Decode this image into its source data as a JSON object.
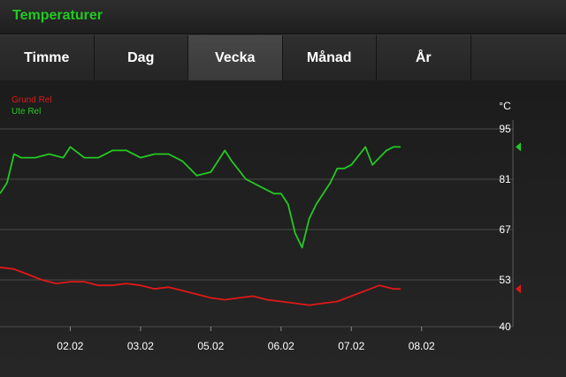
{
  "app": {
    "title": "Temperaturer",
    "title_color": "#22c922"
  },
  "tabs": [
    {
      "label": "Timme",
      "active": false
    },
    {
      "label": "Dag",
      "active": false
    },
    {
      "label": "Vecka",
      "active": true
    },
    {
      "label": "Månad",
      "active": false
    },
    {
      "label": "År",
      "active": false
    }
  ],
  "chart_data": {
    "type": "line",
    "title": "",
    "xlabel": "",
    "ylabel": "°C",
    "ylim": [
      40,
      95
    ],
    "yticks": [
      40,
      53,
      67,
      81,
      95
    ],
    "xlim": [
      0,
      7.3
    ],
    "xticks": [
      {
        "x": 1,
        "label": "02.02"
      },
      {
        "x": 2,
        "label": "03.02"
      },
      {
        "x": 3,
        "label": "05.02"
      },
      {
        "x": 4,
        "label": "06.02"
      },
      {
        "x": 5,
        "label": "07.02"
      },
      {
        "x": 6,
        "label": "08.02"
      }
    ],
    "grid": true,
    "legend": "top-left",
    "series": [
      {
        "name": "Grund Rel",
        "color": "#e01818",
        "marker_color": "#e01818",
        "x": [
          0,
          0.2,
          0.4,
          0.6,
          0.8,
          1.0,
          1.2,
          1.4,
          1.6,
          1.8,
          2.0,
          2.2,
          2.4,
          2.6,
          2.8,
          3.0,
          3.2,
          3.4,
          3.6,
          3.8,
          4.0,
          4.2,
          4.4,
          4.6,
          4.8,
          5.0,
          5.2,
          5.4,
          5.6,
          5.7
        ],
        "values": [
          56.5,
          56,
          54.5,
          53,
          52,
          52.5,
          52.5,
          51.5,
          51.5,
          52,
          51.5,
          50.5,
          51,
          50,
          49,
          48,
          47.5,
          48,
          48.5,
          47.5,
          47,
          46.5,
          46,
          46.5,
          47,
          48.5,
          50,
          51.5,
          50.5,
          50.5
        ]
      },
      {
        "name": "Ute Rel",
        "color": "#22c922",
        "marker_color": "#22c922",
        "x": [
          0,
          0.1,
          0.2,
          0.3,
          0.5,
          0.7,
          0.9,
          1.0,
          1.2,
          1.4,
          1.6,
          1.8,
          2.0,
          2.2,
          2.4,
          2.6,
          2.8,
          3.0,
          3.2,
          3.3,
          3.5,
          3.7,
          3.9,
          4.0,
          4.1,
          4.2,
          4.3,
          4.4,
          4.5,
          4.6,
          4.7,
          4.8,
          4.9,
          5.0,
          5.2,
          5.3,
          5.4,
          5.5,
          5.6,
          5.7
        ],
        "values": [
          77,
          80,
          88,
          87,
          87,
          88,
          87,
          90,
          87,
          87,
          89,
          89,
          87,
          88,
          88,
          86,
          82,
          83,
          89,
          86,
          81,
          79,
          77,
          77,
          74,
          66,
          62,
          70,
          74,
          77,
          80,
          84,
          84,
          85,
          90,
          85,
          87,
          89,
          90,
          90
        ]
      }
    ]
  }
}
